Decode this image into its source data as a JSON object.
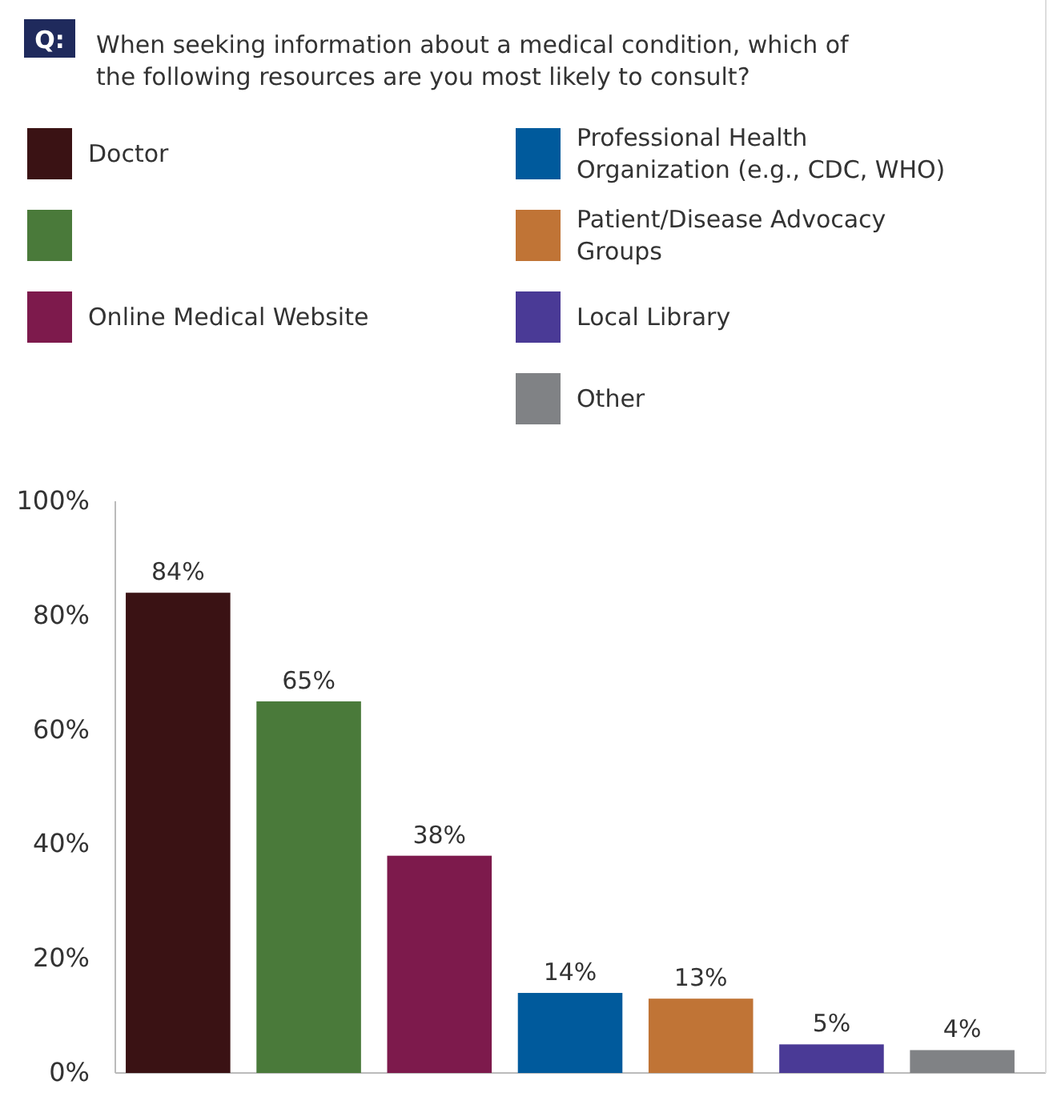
{
  "chart_data": {
    "type": "bar",
    "title": "When seeking information about a medical condition, which of the following resources are you most likely to consult?",
    "annotations": [
      "Q:"
    ],
    "categories": [
      null,
      null,
      null,
      null,
      null,
      null,
      null
    ],
    "series": [
      {
        "name": "Doctor",
        "color": "#3a1214",
        "values": [
          84,
          null,
          null,
          null,
          null,
          null,
          null
        ],
        "value_labels": [
          "84%",
          null,
          null,
          null,
          null,
          null,
          null
        ]
      },
      {
        "color": "#4a7a3a",
        "values": [
          null,
          65,
          null,
          null,
          null,
          null,
          null
        ],
        "value_labels": [
          null,
          "65%",
          null,
          null,
          null,
          null,
          null
        ]
      },
      {
        "name": "Online Medical Website",
        "color": "#7d1a4c",
        "values": [
          null,
          null,
          38,
          null,
          null,
          null,
          null
        ],
        "value_labels": [
          null,
          null,
          "38%",
          null,
          null,
          null,
          null
        ]
      },
      {
        "name": "Professional Health Organization (e.g., CDC, WHO)",
        "color": "#005a9c",
        "values": [
          null,
          null,
          null,
          14,
          null,
          null,
          null
        ],
        "value_labels": [
          null,
          null,
          null,
          "14%",
          null,
          null,
          null
        ]
      },
      {
        "name": "Patient/Disease Advocacy Groups",
        "color": "#c07436",
        "values": [
          null,
          null,
          null,
          null,
          13,
          null,
          null
        ],
        "value_labels": [
          null,
          null,
          null,
          null,
          "13%",
          null,
          null
        ]
      },
      {
        "name": "Local Library",
        "color": "#4a3a96",
        "values": [
          null,
          null,
          null,
          null,
          null,
          5,
          null
        ],
        "value_labels": [
          null,
          null,
          null,
          null,
          null,
          "5%",
          null
        ]
      },
      {
        "name": "Other",
        "color": "#808285",
        "values": [
          null,
          null,
          null,
          null,
          null,
          null,
          4
        ],
        "value_labels": [
          null,
          null,
          null,
          null,
          null,
          null,
          "4%"
        ]
      }
    ],
    "ylim": [
      0,
      100
    ],
    "yticks": [
      {
        "value": 0,
        "label": "0%"
      },
      {
        "value": 20,
        "label": "20%"
      },
      {
        "value": 40,
        "label": "40%"
      },
      {
        "value": 60,
        "label": "60%"
      },
      {
        "value": 80,
        "label": "80%"
      },
      {
        "value": 100,
        "label": "100%"
      }
    ],
    "legend": "top",
    "grid": false,
    "tick_labels": "y"
  }
}
